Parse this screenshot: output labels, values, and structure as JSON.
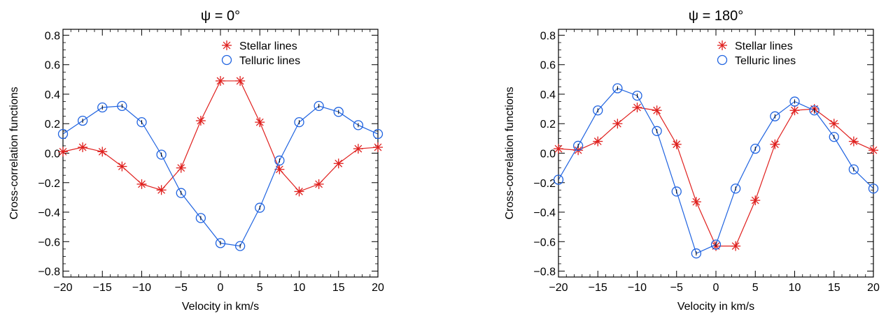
{
  "chart_data": [
    {
      "type": "line",
      "title": "ψ = 0°",
      "xlabel": "Velocity in km/s",
      "ylabel": "Cross-correlation functions",
      "xlim": [
        -20,
        20
      ],
      "ylim": [
        -0.84,
        0.84
      ],
      "xticks": [
        -20,
        -15,
        -10,
        -5,
        0,
        5,
        10,
        15,
        20
      ],
      "xtick_labels": [
        "−20",
        "−15",
        "−10",
        "−5",
        "0",
        "5",
        "10",
        "15",
        "20"
      ],
      "yticks": [
        -0.8,
        -0.6,
        -0.4,
        -0.2,
        0.0,
        0.2,
        0.4,
        0.6,
        0.8
      ],
      "ytick_labels": [
        "−0.8",
        "−0.6",
        "−0.4",
        "−0.2",
        "0.0",
        "0.2",
        "0.4",
        "0.6",
        "0.8"
      ],
      "grid": false,
      "legend_position": "top-right",
      "x": [
        -20,
        -17.5,
        -15,
        -12.5,
        -10,
        -7.5,
        -5,
        -2.5,
        0,
        2.5,
        5,
        7.5,
        10,
        12.5,
        15,
        17.5,
        20
      ],
      "series": [
        {
          "name": "Stellar lines",
          "marker": "asterisk",
          "color": "#e0201e",
          "values": [
            0.01,
            0.04,
            0.01,
            -0.09,
            -0.21,
            -0.25,
            -0.1,
            0.22,
            0.49,
            0.49,
            0.21,
            -0.11,
            -0.26,
            -0.21,
            -0.07,
            0.03,
            0.04
          ]
        },
        {
          "name": "Telluric lines",
          "marker": "circle",
          "color": "#1f63e0",
          "values": [
            0.13,
            0.22,
            0.31,
            0.32,
            0.21,
            -0.01,
            -0.27,
            -0.44,
            -0.61,
            -0.63,
            -0.37,
            -0.05,
            0.21,
            0.32,
            0.28,
            0.19,
            0.13
          ]
        }
      ]
    },
    {
      "type": "line",
      "title": "ψ = 180°",
      "xlabel": "Velocity in km/s",
      "ylabel": "Cross-correlation functions",
      "xlim": [
        -20,
        20
      ],
      "ylim": [
        -0.84,
        0.84
      ],
      "xticks": [
        -20,
        -15,
        -10,
        -5,
        0,
        5,
        10,
        15,
        20
      ],
      "xtick_labels": [
        "−20",
        "−15",
        "−10",
        "−5",
        "0",
        "5",
        "10",
        "15",
        "20"
      ],
      "yticks": [
        -0.8,
        -0.6,
        -0.4,
        -0.2,
        0.0,
        0.2,
        0.4,
        0.6,
        0.8
      ],
      "ytick_labels": [
        "−0.8",
        "−0.6",
        "−0.4",
        "−0.2",
        "0.0",
        "0.2",
        "0.4",
        "0.6",
        "0.8"
      ],
      "grid": false,
      "legend_position": "top-right",
      "x": [
        -20,
        -17.5,
        -15,
        -12.5,
        -10,
        -7.5,
        -5,
        -2.5,
        0,
        2.5,
        5,
        7.5,
        10,
        12.5,
        15,
        17.5,
        20
      ],
      "series": [
        {
          "name": "Stellar lines",
          "marker": "asterisk",
          "color": "#e0201e",
          "values": [
            0.03,
            0.02,
            0.08,
            0.2,
            0.31,
            0.29,
            0.06,
            -0.33,
            -0.63,
            -0.63,
            -0.32,
            0.06,
            0.29,
            0.3,
            0.2,
            0.08,
            0.02
          ]
        },
        {
          "name": "Telluric lines",
          "marker": "circle",
          "color": "#1f63e0",
          "values": [
            -0.18,
            0.05,
            0.29,
            0.44,
            0.39,
            0.15,
            -0.26,
            -0.68,
            -0.62,
            -0.24,
            0.03,
            0.25,
            0.35,
            0.29,
            0.11,
            -0.11,
            -0.24
          ]
        }
      ]
    }
  ]
}
